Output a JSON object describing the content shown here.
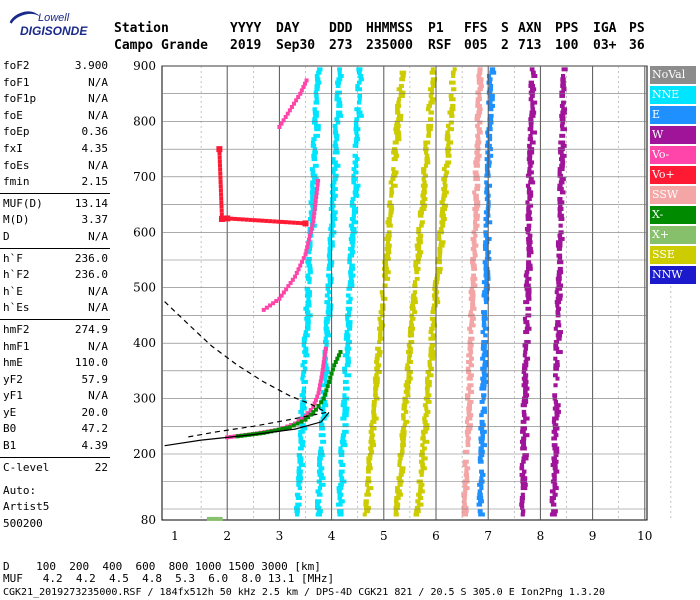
{
  "logo": {
    "line1": "Lowell",
    "line2": "DIGISONDE"
  },
  "header": {
    "labels": [
      "Station",
      "YYYY",
      "DAY",
      "DDD",
      "HHMMSS",
      "P1",
      "FFS",
      "S",
      "AXN",
      "PPS",
      "IGA",
      "PS"
    ],
    "values": [
      "Campo Grande",
      "2019",
      "Sep30",
      "273",
      "235000",
      "RSF",
      "005",
      "2",
      "713",
      "100",
      "03+",
      "36"
    ]
  },
  "params": [
    [
      {
        "k": "foF2",
        "v": "3.900"
      },
      {
        "k": "foF1",
        "v": "N/A"
      },
      {
        "k": "foF1p",
        "v": "N/A"
      },
      {
        "k": "foE",
        "v": "N/A"
      },
      {
        "k": "foEp",
        "v": "0.36"
      },
      {
        "k": "fxI",
        "v": "4.35"
      },
      {
        "k": "foEs",
        "v": "N/A"
      },
      {
        "k": "fmin",
        "v": "2.15"
      }
    ],
    [
      {
        "k": "MUF(D)",
        "v": "13.14"
      },
      {
        "k": "M(D)",
        "v": "3.37"
      },
      {
        "k": "D",
        "v": "N/A"
      }
    ],
    [
      {
        "k": "h`F",
        "v": "236.0"
      },
      {
        "k": "h`F2",
        "v": "236.0"
      },
      {
        "k": "h`E",
        "v": "N/A"
      },
      {
        "k": "h`Es",
        "v": "N/A"
      }
    ],
    [
      {
        "k": "hmF2",
        "v": "274.9"
      },
      {
        "k": "hmF1",
        "v": "N/A"
      },
      {
        "k": "hmE",
        "v": "110.0"
      },
      {
        "k": "yF2",
        "v": "57.9"
      },
      {
        "k": "yF1",
        "v": "N/A"
      },
      {
        "k": "yE",
        "v": "20.0"
      },
      {
        "k": "B0",
        "v": "47.2"
      },
      {
        "k": "B1",
        "v": "4.39"
      }
    ],
    [
      {
        "k": "C-level",
        "v": "22"
      }
    ]
  ],
  "auto": [
    "Auto:",
    "Artist5",
    "500200"
  ],
  "legend": [
    {
      "label": "NoVal",
      "color": "#8c8c8c"
    },
    {
      "label": "NNE",
      "color": "#00e5ff"
    },
    {
      "label": "E",
      "color": "#1e90ff"
    },
    {
      "label": "W",
      "color": "#a0149a"
    },
    {
      "label": "Vo-",
      "color": "#ff44aa"
    },
    {
      "label": "Vo+",
      "color": "#ff1a33"
    },
    {
      "label": "SSW",
      "color": "#f4a5a5"
    },
    {
      "label": "X-",
      "color": "#008a00"
    },
    {
      "label": "X+",
      "color": "#86c06a"
    },
    {
      "label": "SSE",
      "color": "#cccc00"
    },
    {
      "label": "NNW",
      "color": "#1a1acc"
    }
  ],
  "footer": {
    "d_row": "D    100  200  400  600  800 1000 1500 3000 [km]",
    "muf_row": "MUF   4.2  4.2  4.5  4.8  5.3  6.0  8.0 13.1 [MHz]",
    "file_row": "CGK21_2019273235000.RSF / 184fx512h 50 kHz 2.5 km / DPS-4D CGK21 821 / 20.5 S 305.0 E Ion2Png 1.3.20"
  },
  "chart_data": {
    "type": "scatter",
    "xlim": [
      0.8,
      10.6
    ],
    "ylim": [
      80,
      900
    ],
    "x_ticks": [
      1,
      2,
      3,
      4,
      5,
      6,
      7,
      8,
      9,
      10
    ],
    "y_ticks": [
      80,
      200,
      300,
      400,
      500,
      600,
      700,
      800,
      900
    ],
    "grid": true,
    "legend_position": "right",
    "traces": [
      {
        "name": "o-trace F2 (virtual height)",
        "color": "#ff44aa",
        "points": [
          [
            2.0,
            230
          ],
          [
            2.5,
            236
          ],
          [
            3.0,
            244
          ],
          [
            3.3,
            255
          ],
          [
            3.5,
            268
          ],
          [
            3.65,
            285
          ],
          [
            3.75,
            310
          ],
          [
            3.82,
            345
          ],
          [
            3.88,
            385
          ],
          [
            3.9,
            395
          ]
        ]
      },
      {
        "name": "x-trace F2 (virtual height)",
        "color": "#008a00",
        "points": [
          [
            2.2,
            232
          ],
          [
            2.7,
            238
          ],
          [
            3.2,
            248
          ],
          [
            3.5,
            262
          ],
          [
            3.7,
            280
          ],
          [
            3.85,
            300
          ],
          [
            3.95,
            330
          ],
          [
            4.05,
            360
          ],
          [
            4.2,
            390
          ]
        ]
      },
      {
        "name": "2nd hop o-trace",
        "color": "#ff44aa",
        "points": [
          [
            2.7,
            460
          ],
          [
            3.0,
            480
          ],
          [
            3.3,
            520
          ],
          [
            3.5,
            560
          ],
          [
            3.65,
            620
          ],
          [
            3.75,
            700
          ]
        ]
      },
      {
        "name": "3rd hop o-trace",
        "color": "#ff44aa",
        "points": [
          [
            3.0,
            790
          ],
          [
            3.2,
            820
          ],
          [
            3.4,
            850
          ],
          [
            3.55,
            880
          ]
        ]
      },
      {
        "name": "Vo+ points",
        "color": "#ff1a33",
        "points": [
          [
            1.85,
            750
          ],
          [
            1.9,
            624
          ],
          [
            2.0,
            625
          ],
          [
            3.5,
            616
          ]
        ]
      },
      {
        "name": "Es trace",
        "color": "#86c06a",
        "points": [
          [
            1.65,
            82
          ],
          [
            1.8,
            82
          ],
          [
            1.95,
            82
          ]
        ]
      }
    ],
    "bands": [
      {
        "name": "NNE stripes",
        "color": "#00e5ff",
        "ranges": [
          [
            3.3,
            3.7
          ],
          [
            3.7,
            4.1
          ],
          [
            4.1,
            4.5
          ]
        ]
      },
      {
        "name": "SSE stripes",
        "color": "#cccc00",
        "ranges": [
          [
            4.6,
            5.3
          ],
          [
            5.2,
            5.9
          ],
          [
            5.6,
            6.3
          ]
        ]
      },
      {
        "name": "SSW stripe",
        "color": "#f4a5a5",
        "ranges": [
          [
            6.5,
            6.8
          ]
        ]
      },
      {
        "name": "E stripe",
        "color": "#1e90ff",
        "ranges": [
          [
            6.8,
            7.0
          ]
        ]
      },
      {
        "name": "W stripes",
        "color": "#a0149a",
        "ranges": [
          [
            7.6,
            7.8
          ],
          [
            8.2,
            8.4
          ]
        ]
      }
    ],
    "profile_curves": [
      {
        "name": "profile solid",
        "color": "#000",
        "dash": false,
        "points": [
          [
            0.8,
            215
          ],
          [
            1.5,
            225
          ],
          [
            2.5,
            235
          ],
          [
            3.3,
            245
          ],
          [
            3.8,
            258
          ],
          [
            3.95,
            275
          ]
        ]
      },
      {
        "name": "profile dashed",
        "color": "#000",
        "dash": true,
        "points": [
          [
            0.8,
            475
          ],
          [
            1.3,
            430
          ],
          [
            1.7,
            395
          ],
          [
            2.2,
            360
          ],
          [
            2.7,
            330
          ],
          [
            3.2,
            305
          ],
          [
            3.6,
            290
          ],
          [
            3.9,
            275
          ],
          [
            3.2,
            262
          ],
          [
            2.5,
            250
          ],
          [
            1.8,
            240
          ],
          [
            1.2,
            230
          ]
        ]
      }
    ]
  }
}
